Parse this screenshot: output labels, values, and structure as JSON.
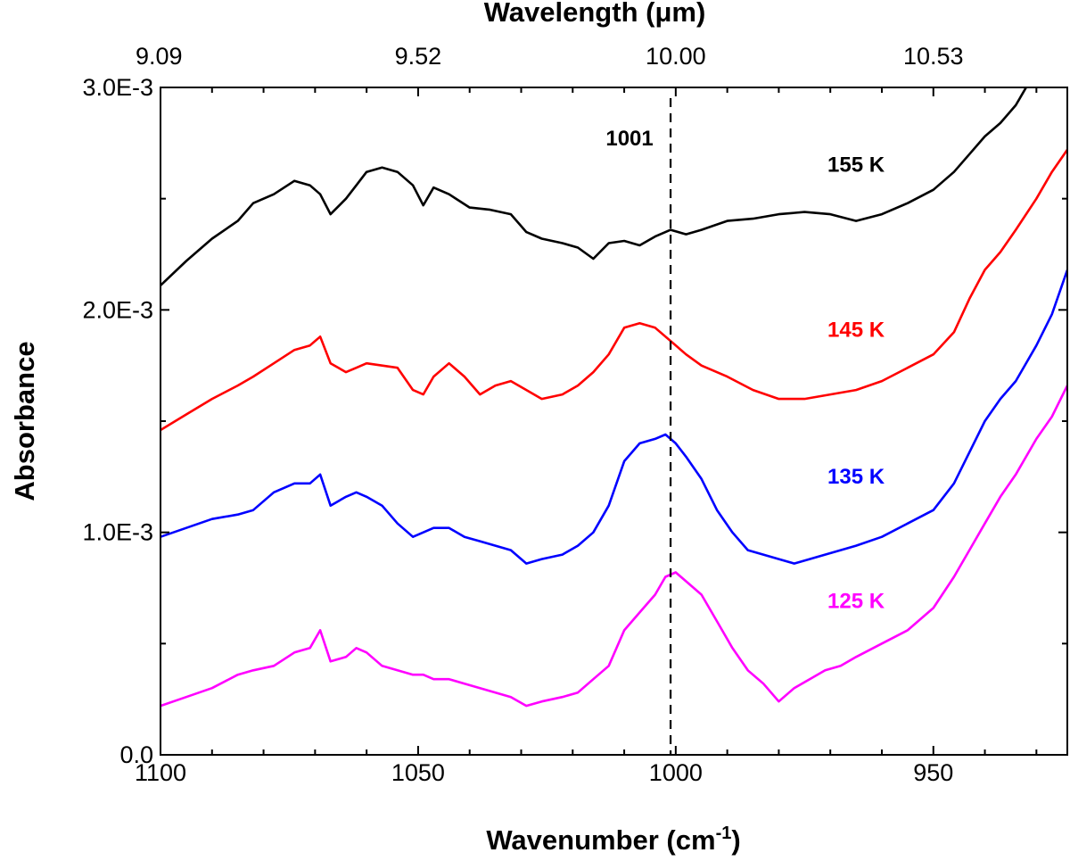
{
  "chart_data": {
    "type": "line",
    "xlabel": "Wavenumber (cm",
    "xlabel_sup": "-1",
    "xlabel_close": ")",
    "x2label": "Wavelength (μm)",
    "ylabel": "Absorbance",
    "xlim": [
      1100,
      924
    ],
    "ylim": [
      0,
      0.003
    ],
    "x_ticks": [
      1100,
      1050,
      1000,
      950
    ],
    "x_tick_labels": [
      "1100",
      "1050",
      "1000",
      "950"
    ],
    "x_minor_ticks": [
      1090,
      1080,
      1070,
      1060,
      1040,
      1030,
      1020,
      1010,
      990,
      980,
      970,
      960,
      940,
      930
    ],
    "x2_ticks": [
      1100,
      1050,
      1000,
      950
    ],
    "x2_tick_labels": [
      "9.09",
      "9.52",
      "10.00",
      "10.53"
    ],
    "y_ticks": [
      0,
      0.001,
      0.002,
      0.003
    ],
    "y_tick_labels": [
      "0.0",
      "1.0E-3",
      "2.0E-3",
      "3.0E-3"
    ],
    "y_minor_ticks": [
      0.0005,
      0.0015,
      0.0025
    ],
    "annotation": {
      "label": "1001",
      "x": 1001
    },
    "series": [
      {
        "name": "155 K",
        "color": "#000000",
        "label_x": 965,
        "label_y": 0.00262,
        "points": [
          [
            1100,
            0.00211
          ],
          [
            1095,
            0.00222
          ],
          [
            1090,
            0.00232
          ],
          [
            1085,
            0.0024
          ],
          [
            1082,
            0.00248
          ],
          [
            1078,
            0.00252
          ],
          [
            1074,
            0.00258
          ],
          [
            1071,
            0.00256
          ],
          [
            1069,
            0.00252
          ],
          [
            1067,
            0.00243
          ],
          [
            1064,
            0.0025
          ],
          [
            1062,
            0.00256
          ],
          [
            1060,
            0.00262
          ],
          [
            1057,
            0.00264
          ],
          [
            1054,
            0.00262
          ],
          [
            1051,
            0.00256
          ],
          [
            1049,
            0.00247
          ],
          [
            1047,
            0.00255
          ],
          [
            1044,
            0.00252
          ],
          [
            1040,
            0.00246
          ],
          [
            1036,
            0.00245
          ],
          [
            1032,
            0.00243
          ],
          [
            1029,
            0.00235
          ],
          [
            1026,
            0.00232
          ],
          [
            1022,
            0.0023
          ],
          [
            1019,
            0.00228
          ],
          [
            1016,
            0.00223
          ],
          [
            1013,
            0.0023
          ],
          [
            1010,
            0.00231
          ],
          [
            1007,
            0.00229
          ],
          [
            1004,
            0.00233
          ],
          [
            1001,
            0.00236
          ],
          [
            998,
            0.00234
          ],
          [
            995,
            0.00236
          ],
          [
            990,
            0.0024
          ],
          [
            985,
            0.00241
          ],
          [
            980,
            0.00243
          ],
          [
            975,
            0.00244
          ],
          [
            970,
            0.00243
          ],
          [
            965,
            0.0024
          ],
          [
            960,
            0.00243
          ],
          [
            955,
            0.00248
          ],
          [
            950,
            0.00254
          ],
          [
            946,
            0.00262
          ],
          [
            943,
            0.0027
          ],
          [
            940,
            0.00278
          ],
          [
            937,
            0.00284
          ],
          [
            934,
            0.00292
          ],
          [
            932,
            0.003
          ]
        ]
      },
      {
        "name": "145 K",
        "color": "#ff0000",
        "label_x": 965,
        "label_y": 0.00188,
        "points": [
          [
            1100,
            0.00146
          ],
          [
            1095,
            0.00153
          ],
          [
            1090,
            0.0016
          ],
          [
            1085,
            0.00166
          ],
          [
            1082,
            0.0017
          ],
          [
            1078,
            0.00176
          ],
          [
            1074,
            0.00182
          ],
          [
            1071,
            0.00184
          ],
          [
            1069,
            0.00188
          ],
          [
            1067,
            0.00176
          ],
          [
            1064,
            0.00172
          ],
          [
            1062,
            0.00174
          ],
          [
            1060,
            0.00176
          ],
          [
            1057,
            0.00175
          ],
          [
            1054,
            0.00174
          ],
          [
            1051,
            0.00164
          ],
          [
            1049,
            0.00162
          ],
          [
            1047,
            0.0017
          ],
          [
            1044,
            0.00176
          ],
          [
            1041,
            0.0017
          ],
          [
            1038,
            0.00162
          ],
          [
            1035,
            0.00166
          ],
          [
            1032,
            0.00168
          ],
          [
            1029,
            0.00164
          ],
          [
            1026,
            0.0016
          ],
          [
            1022,
            0.00162
          ],
          [
            1019,
            0.00166
          ],
          [
            1016,
            0.00172
          ],
          [
            1013,
            0.0018
          ],
          [
            1010,
            0.00192
          ],
          [
            1007,
            0.00194
          ],
          [
            1004,
            0.00192
          ],
          [
            1001,
            0.00186
          ],
          [
            998,
            0.0018
          ],
          [
            995,
            0.00175
          ],
          [
            990,
            0.0017
          ],
          [
            985,
            0.00164
          ],
          [
            980,
            0.0016
          ],
          [
            975,
            0.0016
          ],
          [
            970,
            0.00162
          ],
          [
            965,
            0.00164
          ],
          [
            960,
            0.00168
          ],
          [
            955,
            0.00174
          ],
          [
            950,
            0.0018
          ],
          [
            946,
            0.0019
          ],
          [
            943,
            0.00205
          ],
          [
            940,
            0.00218
          ],
          [
            937,
            0.00226
          ],
          [
            934,
            0.00236
          ],
          [
            930,
            0.0025
          ],
          [
            927,
            0.00262
          ],
          [
            924,
            0.00272
          ]
        ]
      },
      {
        "name": "135 K",
        "color": "#0000ff",
        "label_x": 965,
        "label_y": 0.00122,
        "points": [
          [
            1100,
            0.00098
          ],
          [
            1095,
            0.00102
          ],
          [
            1090,
            0.00106
          ],
          [
            1085,
            0.00108
          ],
          [
            1082,
            0.0011
          ],
          [
            1078,
            0.00118
          ],
          [
            1074,
            0.00122
          ],
          [
            1071,
            0.00122
          ],
          [
            1069,
            0.00126
          ],
          [
            1067,
            0.00112
          ],
          [
            1064,
            0.00116
          ],
          [
            1062,
            0.00118
          ],
          [
            1060,
            0.00116
          ],
          [
            1057,
            0.00112
          ],
          [
            1054,
            0.00104
          ],
          [
            1051,
            0.00098
          ],
          [
            1049,
            0.001
          ],
          [
            1047,
            0.00102
          ],
          [
            1044,
            0.00102
          ],
          [
            1041,
            0.00098
          ],
          [
            1038,
            0.00096
          ],
          [
            1035,
            0.00094
          ],
          [
            1032,
            0.00092
          ],
          [
            1029,
            0.00086
          ],
          [
            1026,
            0.00088
          ],
          [
            1022,
            0.0009
          ],
          [
            1019,
            0.00094
          ],
          [
            1016,
            0.001
          ],
          [
            1013,
            0.00112
          ],
          [
            1010,
            0.00132
          ],
          [
            1007,
            0.0014
          ],
          [
            1004,
            0.00142
          ],
          [
            1002,
            0.00144
          ],
          [
            1000,
            0.0014
          ],
          [
            998,
            0.00134
          ],
          [
            995,
            0.00124
          ],
          [
            992,
            0.0011
          ],
          [
            989,
            0.001
          ],
          [
            986,
            0.00092
          ],
          [
            983,
            0.0009
          ],
          [
            980,
            0.00088
          ],
          [
            977,
            0.00086
          ],
          [
            974,
            0.00088
          ],
          [
            971,
            0.0009
          ],
          [
            968,
            0.00092
          ],
          [
            965,
            0.00094
          ],
          [
            960,
            0.00098
          ],
          [
            955,
            0.00104
          ],
          [
            950,
            0.0011
          ],
          [
            946,
            0.00122
          ],
          [
            943,
            0.00136
          ],
          [
            940,
            0.0015
          ],
          [
            937,
            0.0016
          ],
          [
            934,
            0.00168
          ],
          [
            930,
            0.00184
          ],
          [
            927,
            0.00198
          ],
          [
            924,
            0.00218
          ]
        ]
      },
      {
        "name": "125 K",
        "color": "#ff00ff",
        "label_x": 965,
        "label_y": 0.00066,
        "points": [
          [
            1100,
            0.00022
          ],
          [
            1095,
            0.00026
          ],
          [
            1090,
            0.0003
          ],
          [
            1085,
            0.00036
          ],
          [
            1082,
            0.00038
          ],
          [
            1078,
            0.0004
          ],
          [
            1074,
            0.00046
          ],
          [
            1071,
            0.00048
          ],
          [
            1069,
            0.00056
          ],
          [
            1067,
            0.00042
          ],
          [
            1064,
            0.00044
          ],
          [
            1062,
            0.00048
          ],
          [
            1060,
            0.00046
          ],
          [
            1057,
            0.0004
          ],
          [
            1054,
            0.00038
          ],
          [
            1051,
            0.00036
          ],
          [
            1049,
            0.00036
          ],
          [
            1047,
            0.00034
          ],
          [
            1044,
            0.00034
          ],
          [
            1041,
            0.00032
          ],
          [
            1038,
            0.0003
          ],
          [
            1035,
            0.00028
          ],
          [
            1032,
            0.00026
          ],
          [
            1029,
            0.00022
          ],
          [
            1026,
            0.00024
          ],
          [
            1022,
            0.00026
          ],
          [
            1019,
            0.00028
          ],
          [
            1016,
            0.00034
          ],
          [
            1013,
            0.0004
          ],
          [
            1010,
            0.00056
          ],
          [
            1007,
            0.00064
          ],
          [
            1004,
            0.00072
          ],
          [
            1002,
            0.0008
          ],
          [
            1000,
            0.00082
          ],
          [
            998,
            0.00078
          ],
          [
            995,
            0.00072
          ],
          [
            992,
            0.0006
          ],
          [
            989,
            0.00048
          ],
          [
            986,
            0.00038
          ],
          [
            983,
            0.00032
          ],
          [
            980,
            0.00024
          ],
          [
            977,
            0.0003
          ],
          [
            974,
            0.00034
          ],
          [
            971,
            0.00038
          ],
          [
            968,
            0.0004
          ],
          [
            965,
            0.00044
          ],
          [
            960,
            0.0005
          ],
          [
            955,
            0.00056
          ],
          [
            950,
            0.00066
          ],
          [
            946,
            0.0008
          ],
          [
            943,
            0.00092
          ],
          [
            940,
            0.00104
          ],
          [
            937,
            0.00116
          ],
          [
            934,
            0.00126
          ],
          [
            930,
            0.00142
          ],
          [
            927,
            0.00152
          ],
          [
            924,
            0.00166
          ]
        ]
      }
    ]
  }
}
